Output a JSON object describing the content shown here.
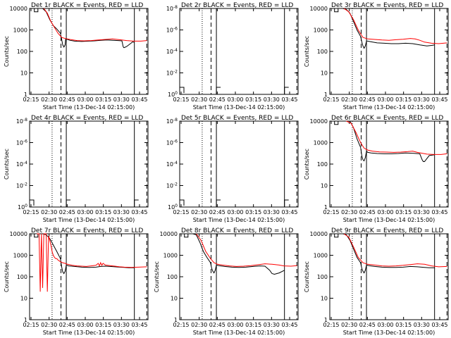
{
  "figure": {
    "background": "#ffffff",
    "colors": {
      "events": "#000000",
      "lld": "#ff0000",
      "axes": "#000000"
    }
  },
  "chart_data": [
    {
      "type": "line",
      "scale": "log",
      "title": "Det 1r BLACK = Events, RED = LLD",
      "xlabel": "Start Time (13-Dec-14 02:15:00)",
      "ylabel": "Counts/sec",
      "xticks": [
        "02:15",
        "02:30",
        "02:45",
        "03:00",
        "03:15",
        "03:30",
        "03:45"
      ],
      "yticks": [
        "1",
        "10",
        "100",
        "1000",
        "10000"
      ],
      "x_range_min": [
        0,
        100
      ],
      "y_range_log10": [
        0,
        4
      ],
      "vlines": [
        {
          "x": 19,
          "style": "dotted"
        },
        {
          "x": 26.5,
          "style": "dashed"
        },
        {
          "x": 31,
          "style": "solid"
        },
        {
          "x": 88.5,
          "style": "solid"
        },
        {
          "x": 99,
          "style": "dashed"
        }
      ],
      "series": [
        {
          "name": "Events",
          "color": "#000000",
          "x": [
            1,
            4,
            4,
            7,
            7,
            11,
            14,
            17,
            20,
            23,
            26,
            27,
            28,
            29,
            30,
            30.5,
            31.5,
            32,
            34,
            38,
            44,
            50,
            55,
            60,
            65,
            70,
            75,
            78,
            79,
            79.5,
            80,
            82,
            86,
            87,
            88.5
          ],
          "y": [
            10000,
            10000,
            7000,
            7000,
            10000,
            10000,
            7000,
            3000,
            1600,
            1100,
            700,
            380,
            200,
            160,
            200,
            380,
            370,
            360,
            330,
            300,
            290,
            300,
            310,
            330,
            340,
            330,
            320,
            310,
            170,
            150,
            150,
            170,
            250,
            280,
            260
          ]
        },
        {
          "name": "LLD",
          "color": "#ff0000",
          "x": [
            12,
            15,
            18,
            21,
            24,
            27,
            30,
            34,
            40,
            46,
            52,
            58,
            64,
            70,
            76,
            82,
            88,
            94,
            99
          ],
          "y": [
            10000,
            6000,
            2500,
            1300,
            700,
            450,
            400,
            360,
            320,
            310,
            320,
            340,
            360,
            380,
            350,
            320,
            300,
            300,
            320
          ]
        }
      ]
    },
    {
      "type": "line",
      "scale": "log",
      "title": "Det 2r BLACK = Events, RED = LLD",
      "xlabel": "Start Time (13-Dec-14 02:15:00)",
      "ylabel": "",
      "xticks": [
        "02:15",
        "02:30",
        "02:45",
        "03:00",
        "03:15",
        "03:30",
        "03:45"
      ],
      "yticks": [
        "10^0",
        "10^-2",
        "10^-4",
        "10^-6",
        "10^-8"
      ],
      "vlines": [
        {
          "x": 19,
          "style": "dotted"
        },
        {
          "x": 26.5,
          "style": "dashed"
        },
        {
          "x": 31,
          "style": "solid"
        },
        {
          "x": 88.5,
          "style": "solid"
        },
        {
          "x": 99,
          "style": "dashed"
        }
      ],
      "series": []
    },
    {
      "type": "line",
      "scale": "log",
      "title": "Det 3r BLACK = Events, RED = LLD",
      "xlabel": "Start Time (13-Dec-14 02:15:00)",
      "ylabel": "Counts/sec",
      "xticks": [
        "02:15",
        "02:30",
        "02:45",
        "03:00",
        "03:15",
        "03:30",
        "03:45"
      ],
      "yticks": [
        "1",
        "10",
        "100",
        "1000",
        "10000"
      ],
      "vlines": [
        {
          "x": 19,
          "style": "dotted"
        },
        {
          "x": 26.5,
          "style": "dashed"
        },
        {
          "x": 31,
          "style": "solid"
        },
        {
          "x": 88.5,
          "style": "solid"
        },
        {
          "x": 99,
          "style": "dashed"
        }
      ],
      "series": [
        {
          "name": "Events",
          "color": "#000000",
          "x": [
            1,
            4,
            4,
            7,
            7,
            11,
            14,
            17,
            20,
            23,
            26,
            27,
            28,
            29,
            30,
            31,
            32,
            35,
            40,
            46,
            52,
            58,
            64,
            70,
            76,
            82,
            86,
            88.5
          ],
          "y": [
            10000,
            10000,
            7000,
            7000,
            10000,
            10000,
            9000,
            6000,
            2500,
            1000,
            500,
            280,
            180,
            140,
            180,
            300,
            300,
            280,
            250,
            240,
            230,
            230,
            240,
            230,
            200,
            180,
            190,
            200
          ]
        },
        {
          "name": "LLD",
          "color": "#ff0000",
          "x": [
            12,
            16,
            20,
            24,
            28,
            32,
            38,
            44,
            50,
            56,
            62,
            68,
            72,
            76,
            80,
            86,
            92,
            99
          ],
          "y": [
            10000,
            7000,
            3000,
            1000,
            450,
            380,
            360,
            340,
            330,
            350,
            370,
            400,
            380,
            330,
            270,
            240,
            230,
            250
          ]
        }
      ]
    },
    {
      "type": "line",
      "scale": "log",
      "title": "Det 4r BLACK = Events, RED = LLD",
      "xlabel": "Start Time (13-Dec-14 02:15:00)",
      "ylabel": "Counts/sec",
      "xticks": [
        "02:15",
        "02:30",
        "02:45",
        "03:00",
        "03:15",
        "03:30",
        "03:45"
      ],
      "yticks": [
        "10^0",
        "10^-2",
        "10^-4",
        "10^-6",
        "10^-8"
      ],
      "vlines": [
        {
          "x": 19,
          "style": "dotted"
        },
        {
          "x": 26.5,
          "style": "dashed"
        },
        {
          "x": 31,
          "style": "solid"
        },
        {
          "x": 88.5,
          "style": "solid"
        },
        {
          "x": 99,
          "style": "dashed"
        }
      ],
      "series": []
    },
    {
      "type": "line",
      "scale": "log",
      "title": "Det 5r BLACK = Events, RED = LLD",
      "xlabel": "Start Time (13-Dec-14 02:15:00)",
      "ylabel": "",
      "xticks": [
        "02:15",
        "02:30",
        "02:45",
        "03:00",
        "03:15",
        "03:30",
        "03:45"
      ],
      "yticks": [
        "10^0",
        "10^-2",
        "10^-4",
        "10^-6",
        "10^-8"
      ],
      "vlines": [
        {
          "x": 19,
          "style": "dotted"
        },
        {
          "x": 26.5,
          "style": "dashed"
        },
        {
          "x": 31,
          "style": "solid"
        },
        {
          "x": 88.5,
          "style": "solid"
        },
        {
          "x": 99,
          "style": "dashed"
        }
      ],
      "series": []
    },
    {
      "type": "line",
      "scale": "log",
      "title": "Det 6r BLACK = Events, RED = LLD",
      "xlabel": "Start Time (13-Dec-14 02:15:00)",
      "ylabel": "Counts/sec",
      "xticks": [
        "02:15",
        "02:30",
        "02:45",
        "03:00",
        "03:15",
        "03:30",
        "03:45"
      ],
      "yticks": [
        "1",
        "10",
        "100",
        "1000",
        "10000"
      ],
      "vlines": [
        {
          "x": 19,
          "style": "dotted"
        },
        {
          "x": 26.5,
          "style": "dashed"
        },
        {
          "x": 31,
          "style": "solid"
        },
        {
          "x": 88.5,
          "style": "solid"
        },
        {
          "x": 99,
          "style": "dashed"
        }
      ],
      "series": [
        {
          "name": "Events",
          "color": "#000000",
          "x": [
            1,
            4,
            4,
            7,
            7,
            11,
            14,
            17,
            20,
            23,
            26,
            27,
            28,
            29,
            30,
            31,
            32,
            35,
            40,
            46,
            52,
            58,
            64,
            70,
            76,
            78,
            79,
            80,
            84,
            88.5
          ],
          "y": [
            10000,
            10000,
            7000,
            7000,
            10000,
            10000,
            10000,
            10000,
            5000,
            1500,
            600,
            250,
            160,
            140,
            200,
            400,
            350,
            330,
            310,
            300,
            300,
            310,
            330,
            320,
            300,
            160,
            130,
            130,
            250,
            270
          ]
        },
        {
          "name": "LLD",
          "color": "#ff0000",
          "x": [
            14,
            18,
            22,
            26,
            29,
            32,
            36,
            42,
            48,
            54,
            60,
            66,
            70,
            74,
            78,
            82,
            88,
            94,
            99
          ],
          "y": [
            10000,
            8000,
            3000,
            1000,
            550,
            450,
            400,
            370,
            360,
            350,
            360,
            380,
            400,
            350,
            320,
            290,
            280,
            280,
            300
          ]
        }
      ]
    },
    {
      "type": "line",
      "scale": "log",
      "title": "Det 7r BLACK = Events, RED = LLD",
      "xlabel": "Start Time (13-Dec-14 02:15:00)",
      "ylabel": "Counts/sec",
      "xticks": [
        "02:15",
        "02:30",
        "02:45",
        "03:00",
        "03:15",
        "03:30",
        "03:45"
      ],
      "yticks": [
        "1",
        "10",
        "100",
        "1000",
        "10000"
      ],
      "vlines": [
        {
          "x": 19,
          "style": "dotted"
        },
        {
          "x": 26.5,
          "style": "dashed"
        },
        {
          "x": 31,
          "style": "solid"
        },
        {
          "x": 88.5,
          "style": "solid"
        },
        {
          "x": 99,
          "style": "dashed"
        }
      ],
      "series": [
        {
          "name": "Events",
          "color": "#000000",
          "x": [
            1,
            4,
            4,
            7,
            7,
            11,
            14,
            17,
            20,
            23,
            26,
            27,
            28,
            29,
            30,
            31,
            33,
            38,
            44,
            50,
            56,
            60,
            64,
            68,
            72,
            76,
            80,
            84,
            88.5
          ],
          "y": [
            10000,
            10000,
            7000,
            7000,
            10000,
            10000,
            9000,
            6000,
            3000,
            1500,
            700,
            300,
            170,
            140,
            180,
            350,
            320,
            300,
            280,
            270,
            280,
            300,
            310,
            300,
            290,
            280,
            270,
            260,
            260
          ]
        },
        {
          "name": "LLD",
          "color": "#ff0000",
          "x": [
            6,
            8,
            9,
            10,
            11,
            12,
            13,
            14,
            15,
            16,
            17,
            18,
            19,
            20,
            21,
            22,
            23,
            24,
            26,
            28,
            30,
            32,
            36,
            40,
            44,
            48,
            52,
            56,
            58,
            59,
            60,
            61,
            62,
            64,
            68,
            72,
            76,
            80,
            86,
            92,
            99
          ],
          "y": [
            10000,
            10000,
            20,
            10000,
            30,
            10000,
            10000,
            10000,
            20,
            8000,
            5000,
            3000,
            1500,
            1000,
            800,
            700,
            700,
            600,
            500,
            450,
            420,
            380,
            340,
            320,
            310,
            300,
            320,
            340,
            420,
            320,
            450,
            340,
            420,
            350,
            330,
            310,
            290,
            280,
            270,
            280,
            290
          ]
        }
      ]
    },
    {
      "type": "line",
      "scale": "log",
      "title": "Det 8r BLACK = Events, RED = LLD",
      "xlabel": "Start Time (13-Dec-14 02:15:00)",
      "ylabel": "Counts/sec",
      "xticks": [
        "02:15",
        "02:30",
        "02:45",
        "03:00",
        "03:15",
        "03:30",
        "03:45"
      ],
      "yticks": [
        "1",
        "10",
        "100",
        "1000",
        "10000"
      ],
      "vlines": [
        {
          "x": 19,
          "style": "dotted"
        },
        {
          "x": 26.5,
          "style": "dashed"
        },
        {
          "x": 31,
          "style": "solid"
        },
        {
          "x": 88.5,
          "style": "solid"
        },
        {
          "x": 99,
          "style": "dashed"
        }
      ],
      "series": [
        {
          "name": "Events",
          "color": "#000000",
          "x": [
            1,
            4,
            4,
            7,
            7,
            11,
            14,
            17,
            20,
            23,
            26,
            27,
            28,
            29,
            30,
            31,
            33,
            38,
            44,
            50,
            56,
            62,
            68,
            72,
            76,
            78,
            80,
            84,
            88.5
          ],
          "y": [
            10000,
            10000,
            7000,
            7000,
            10000,
            10000,
            9000,
            4000,
            1500,
            800,
            450,
            250,
            180,
            150,
            200,
            350,
            330,
            300,
            280,
            270,
            280,
            300,
            320,
            310,
            200,
            140,
            130,
            150,
            200
          ]
        },
        {
          "name": "LLD",
          "color": "#ff0000",
          "x": [
            14,
            18,
            22,
            26,
            29,
            32,
            36,
            42,
            48,
            54,
            60,
            66,
            72,
            78,
            84,
            88,
            94,
            99
          ],
          "y": [
            10000,
            5000,
            1500,
            700,
            450,
            380,
            350,
            320,
            300,
            310,
            330,
            360,
            400,
            380,
            350,
            320,
            310,
            330
          ]
        }
      ]
    },
    {
      "type": "line",
      "scale": "log",
      "title": "Det 9r BLACK = Events, RED = LLD",
      "xlabel": "Start Time (13-Dec-14 02:15:00)",
      "ylabel": "Counts/sec",
      "xticks": [
        "02:15",
        "02:30",
        "02:45",
        "03:00",
        "03:15",
        "03:30",
        "03:45"
      ],
      "yticks": [
        "1",
        "10",
        "100",
        "1000",
        "10000"
      ],
      "vlines": [
        {
          "x": 19,
          "style": "dotted"
        },
        {
          "x": 26.5,
          "style": "dashed"
        },
        {
          "x": 31,
          "style": "solid"
        },
        {
          "x": 88.5,
          "style": "solid"
        },
        {
          "x": 99,
          "style": "dashed"
        }
      ],
      "series": [
        {
          "name": "Events",
          "color": "#000000",
          "x": [
            1,
            4,
            4,
            7,
            7,
            11,
            14,
            17,
            20,
            23,
            26,
            27,
            28,
            29,
            30,
            31,
            33,
            38,
            44,
            50,
            56,
            62,
            68,
            74,
            80,
            84,
            88.5
          ],
          "y": [
            10000,
            10000,
            7000,
            7000,
            10000,
            10000,
            9000,
            5000,
            2000,
            800,
            450,
            250,
            180,
            150,
            200,
            350,
            330,
            300,
            280,
            270,
            270,
            280,
            300,
            290,
            270,
            260,
            260
          ]
        },
        {
          "name": "LLD",
          "color": "#ff0000",
          "x": [
            12,
            16,
            20,
            24,
            28,
            32,
            38,
            44,
            50,
            56,
            62,
            68,
            74,
            80,
            86,
            92,
            99
          ],
          "y": [
            10000,
            7000,
            2500,
            800,
            450,
            380,
            350,
            320,
            310,
            320,
            340,
            370,
            400,
            380,
            320,
            290,
            300
          ]
        }
      ]
    }
  ]
}
